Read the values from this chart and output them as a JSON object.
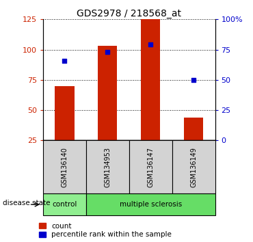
{
  "title": "GDS2978 / 218568_at",
  "samples": [
    "GSM136140",
    "GSM134953",
    "GSM136147",
    "GSM136149"
  ],
  "counts": [
    70,
    103,
    125,
    44
  ],
  "percentiles": [
    66,
    73,
    79,
    50
  ],
  "bar_color": "#cc2200",
  "dot_color": "#0000cc",
  "ylim_left": [
    25,
    125
  ],
  "ylim_right": [
    0,
    100
  ],
  "yticks_left": [
    25,
    50,
    75,
    100,
    125
  ],
  "yticks_right": [
    0,
    25,
    50,
    75,
    100
  ],
  "ytick_labels_right": [
    "0",
    "25",
    "50",
    "75",
    "100%"
  ],
  "disease_label": "disease state",
  "legend_count": "count",
  "legend_percentile": "percentile rank within the sample",
  "sample_box_color": "#d3d3d3",
  "control_color": "#90ee90",
  "ms_color": "#66dd66",
  "bar_width": 0.45
}
